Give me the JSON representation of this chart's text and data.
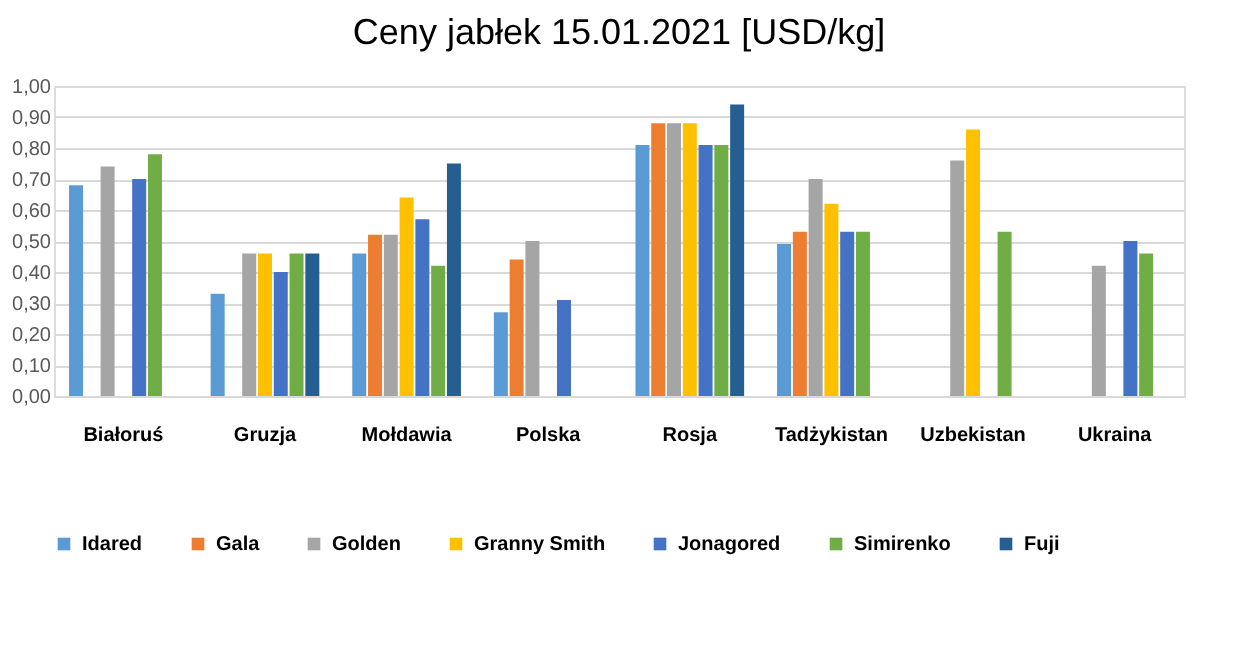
{
  "chart_data": {
    "type": "bar",
    "title": "Ceny jabłek 15.01.2021 [USD/kg]",
    "categories": [
      "Białoruś",
      "Gruzja",
      "Mołdawia",
      "Polska",
      "Rosja",
      "Tadżykistan",
      "Uzbekistan",
      "Ukraina"
    ],
    "series": [
      {
        "name": "Idared",
        "color": "#5b9bd5",
        "values": [
          0.68,
          0.33,
          0.46,
          0.27,
          0.81,
          0.49,
          null,
          null
        ]
      },
      {
        "name": "Gala",
        "color": "#ed7d31",
        "values": [
          null,
          null,
          0.52,
          0.44,
          0.88,
          0.53,
          null,
          null
        ]
      },
      {
        "name": "Golden",
        "color": "#a5a5a5",
        "values": [
          0.74,
          0.46,
          0.52,
          0.5,
          0.88,
          0.7,
          0.76,
          0.42
        ]
      },
      {
        "name": "Granny Smith",
        "color": "#ffc000",
        "values": [
          null,
          0.46,
          0.64,
          null,
          0.88,
          0.62,
          0.86,
          null
        ]
      },
      {
        "name": "Jonagored",
        "color": "#4472c4",
        "values": [
          0.7,
          0.4,
          0.57,
          0.31,
          0.81,
          0.53,
          null,
          0.5
        ]
      },
      {
        "name": "Simirenko",
        "color": "#70ad47",
        "values": [
          0.78,
          0.46,
          0.42,
          null,
          0.81,
          0.53,
          0.53,
          0.46
        ]
      },
      {
        "name": "Fuji",
        "color": "#255e91",
        "values": [
          null,
          0.46,
          0.75,
          null,
          0.94,
          null,
          null,
          null
        ]
      }
    ],
    "ylim": [
      0,
      1
    ],
    "yticks": [
      {
        "value": 0,
        "label": "0,00"
      },
      {
        "value": 0.1,
        "label": "0,10"
      },
      {
        "value": 0.2,
        "label": "0,20"
      },
      {
        "value": 0.3,
        "label": "0,30"
      },
      {
        "value": 0.4,
        "label": "0,40"
      },
      {
        "value": 0.5,
        "label": "0,50"
      },
      {
        "value": 0.6,
        "label": "0,60"
      },
      {
        "value": 0.7,
        "label": "0,70"
      },
      {
        "value": 0.8,
        "label": "0,80"
      },
      {
        "value": 0.9,
        "label": "0,90"
      },
      {
        "value": 1.0,
        "label": "1,00"
      }
    ],
    "grid": "y",
    "legend": "bottom"
  }
}
